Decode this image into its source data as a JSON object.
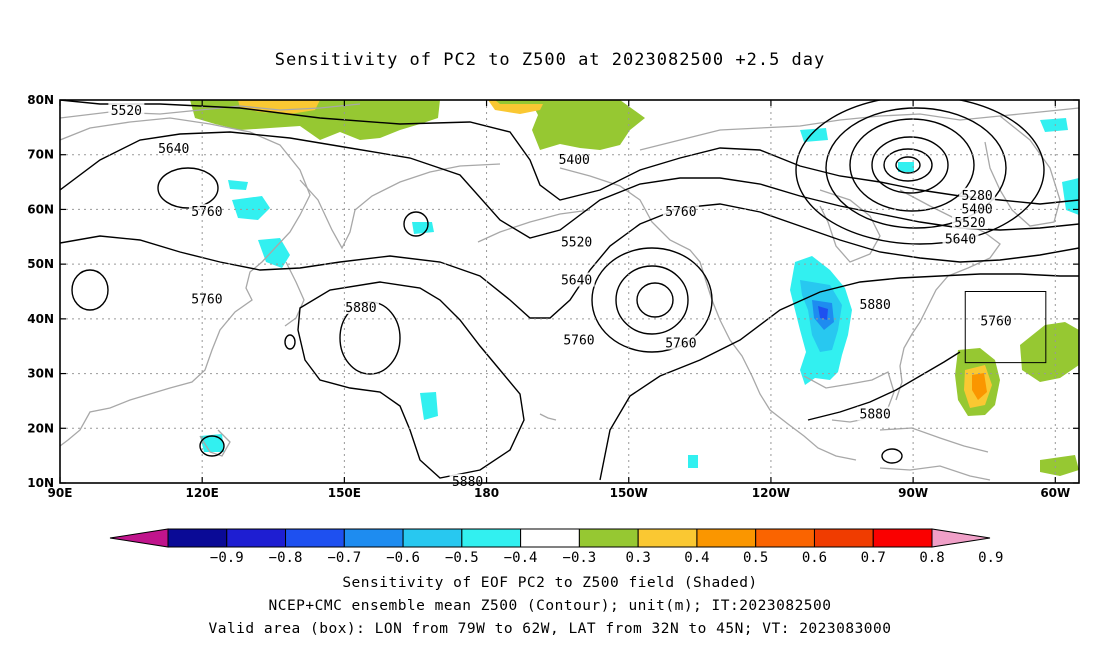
{
  "title": "Sensitivity of PC2 to Z500 at 2023082500 +2.5 day",
  "map": {
    "lon_range": [
      90,
      305
    ],
    "lat_range": [
      10,
      80
    ],
    "lon_ticks": [
      {
        "value": 90,
        "label": "90E"
      },
      {
        "value": 120,
        "label": "120E"
      },
      {
        "value": 150,
        "label": "150E"
      },
      {
        "value": 180,
        "label": "180"
      },
      {
        "value": 210,
        "label": "150W"
      },
      {
        "value": 240,
        "label": "120W"
      },
      {
        "value": 270,
        "label": "90W"
      },
      {
        "value": 300,
        "label": "60W"
      }
    ],
    "lat_ticks": [
      {
        "value": 80,
        "label": "80N"
      },
      {
        "value": 70,
        "label": "70N"
      },
      {
        "value": 60,
        "label": "60N"
      },
      {
        "value": 50,
        "label": "50N"
      },
      {
        "value": 40,
        "label": "40N"
      },
      {
        "value": 30,
        "label": "30N"
      },
      {
        "value": 20,
        "label": "20N"
      },
      {
        "value": 10,
        "label": "10N"
      }
    ],
    "contour_labels": [
      {
        "text": "5520",
        "lon": 104,
        "lat": 78
      },
      {
        "text": "5640",
        "lon": 114,
        "lat": 71
      },
      {
        "text": "5760",
        "lon": 121,
        "lat": 59.5
      },
      {
        "text": "5760",
        "lon": 121,
        "lat": 43.5
      },
      {
        "text": "5880",
        "lon": 153.5,
        "lat": 42
      },
      {
        "text": "5400",
        "lon": 198.5,
        "lat": 69
      },
      {
        "text": "5520",
        "lon": 199,
        "lat": 54
      },
      {
        "text": "5640",
        "lon": 199,
        "lat": 47
      },
      {
        "text": "5760",
        "lon": 199.5,
        "lat": 36
      },
      {
        "text": "5760",
        "lon": 221,
        "lat": 59.5
      },
      {
        "text": "5760",
        "lon": 221,
        "lat": 35.5
      },
      {
        "text": "5880",
        "lon": 262,
        "lat": 42.5
      },
      {
        "text": "5880",
        "lon": 262,
        "lat": 22.5
      },
      {
        "text": "5280",
        "lon": 283.5,
        "lat": 62.5
      },
      {
        "text": "5400",
        "lon": 283.5,
        "lat": 60
      },
      {
        "text": "5520",
        "lon": 282,
        "lat": 57.5
      },
      {
        "text": "5640",
        "lon": 280,
        "lat": 54.5
      },
      {
        "text": "5760",
        "lon": 287.5,
        "lat": 39.5
      },
      {
        "text": "5880",
        "lon": 176,
        "lat": 10.2
      }
    ],
    "valid_box": {
      "lon_min": 281,
      "lon_max": 298,
      "lat_min": 32,
      "lat_max": 45
    }
  },
  "colorbar": {
    "labels": [
      "−0.9",
      "−0.8",
      "−0.7",
      "−0.6",
      "−0.5",
      "−0.4",
      "−0.3",
      "0.3",
      "0.4",
      "0.5",
      "0.6",
      "0.7",
      "0.8",
      "0.9"
    ],
    "colors": [
      "#c0148c",
      "#0a0a96",
      "#1e1ed2",
      "#1e50f0",
      "#1e8cf0",
      "#28c8f0",
      "#32f0f0",
      "#ffffff",
      "#96c832",
      "#fac832",
      "#fa9600",
      "#fa6400",
      "#f03c00",
      "#fa0000",
      "#f0a0c8"
    ]
  },
  "captions": {
    "line1": "Sensitivity of EOF PC2 to Z500 field (Shaded)",
    "line2": "NCEP+CMC ensemble mean Z500 (Contour); unit(m); IT:2023082500",
    "line3": "Valid area (box): LON from 79W to 62W, LAT from 32N to 45N; VT: 2023083000"
  }
}
